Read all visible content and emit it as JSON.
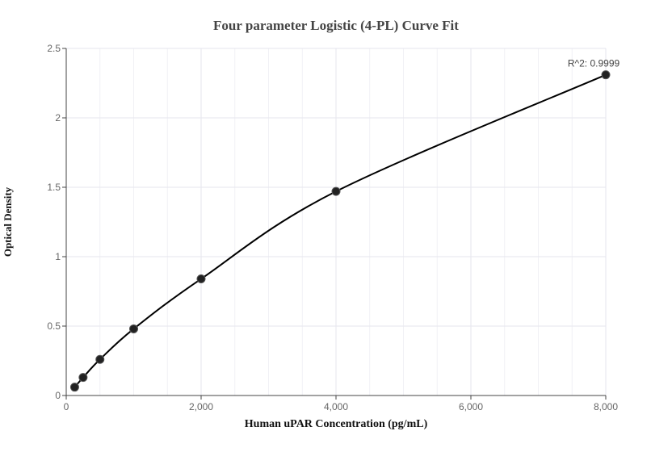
{
  "chart_data": {
    "type": "scatter",
    "title": "Four parameter Logistic (4-PL) Curve Fit",
    "xlabel": "Human uPAR Concentration (pg/mL)",
    "ylabel": "Optical Density",
    "xlim": [
      0,
      8000
    ],
    "ylim": [
      0,
      2.5
    ],
    "x_ticks": [
      0,
      2000,
      4000,
      6000,
      8000
    ],
    "x_tick_labels": [
      "0",
      "2,000",
      "4,000",
      "6,000",
      "8,000"
    ],
    "y_ticks": [
      0,
      0.5,
      1,
      1.5,
      2,
      2.5
    ],
    "y_tick_labels": [
      "0",
      "0.5",
      "1",
      "1.5",
      "2",
      "2.5"
    ],
    "grid": true,
    "series": [
      {
        "x": [
          125,
          250,
          500,
          1000,
          2000,
          4000,
          8000
        ],
        "y": [
          0.06,
          0.13,
          0.26,
          0.48,
          0.84,
          1.47,
          2.31
        ]
      }
    ],
    "annotation": "R^2: 0.9999",
    "point_color": "#222222",
    "line_color": "#000000",
    "grid_color": "#e6e6ee"
  }
}
